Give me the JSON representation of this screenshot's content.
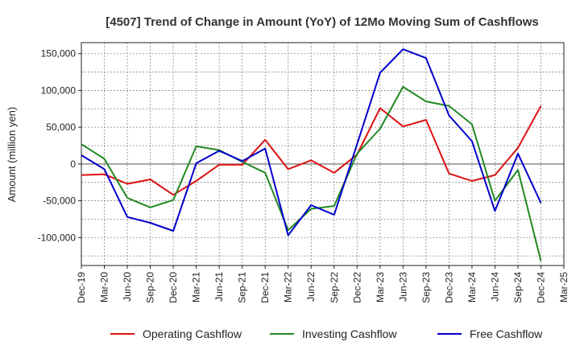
{
  "chart_data": {
    "type": "line",
    "title": "[4507]  Trend of Change in Amount (YoY) of 12Mo Moving Sum of Cashflows",
    "xlabel": "",
    "ylabel": "Amount (million yen)",
    "ylim": [
      -138000,
      165000
    ],
    "yticks": [
      150000,
      100000,
      50000,
      0,
      -50000,
      -100000
    ],
    "ytick_labels": [
      "150,000",
      "100,000",
      "50,000",
      "0",
      "-50,000",
      "-100,000"
    ],
    "grid": true,
    "legend": "bottom",
    "categories": [
      "Dec-19",
      "Mar-20",
      "Jun-20",
      "Sep-20",
      "Dec-20",
      "Mar-21",
      "Jun-21",
      "Sep-21",
      "Dec-21",
      "Mar-22",
      "Jun-22",
      "Sep-22",
      "Dec-22",
      "Mar-23",
      "Jun-23",
      "Sep-23",
      "Dec-23",
      "Mar-24",
      "Jun-24",
      "Sep-24",
      "Dec-24",
      "Mar-25"
    ],
    "series": [
      {
        "name": "Operating Cashflow",
        "color": "#dd1111",
        "values": [
          -15000,
          -14000,
          -27000,
          -21000,
          -42000,
          -23000,
          -1000,
          -1000,
          33000,
          -7000,
          5000,
          -12000,
          13000,
          76000,
          51000,
          60000,
          -13000,
          -23000,
          -15000,
          22000,
          79000,
          null
        ]
      },
      {
        "name": "Investing Cashflow",
        "color": "#228822",
        "values": [
          27000,
          7000,
          -46000,
          -59000,
          -49000,
          24000,
          19000,
          3000,
          -12000,
          -90000,
          -61000,
          -57000,
          14000,
          48000,
          105000,
          85000,
          79000,
          54000,
          -50000,
          -8000,
          -132000,
          null
        ]
      },
      {
        "name": "Free Cashflow",
        "color": "#0000cc",
        "values": [
          12000,
          -7000,
          -72000,
          -80000,
          -91000,
          1000,
          18000,
          4000,
          21000,
          -97000,
          -56000,
          -69000,
          27000,
          124000,
          156000,
          144000,
          66000,
          31000,
          -64000,
          14000,
          -53000,
          null
        ]
      }
    ]
  }
}
